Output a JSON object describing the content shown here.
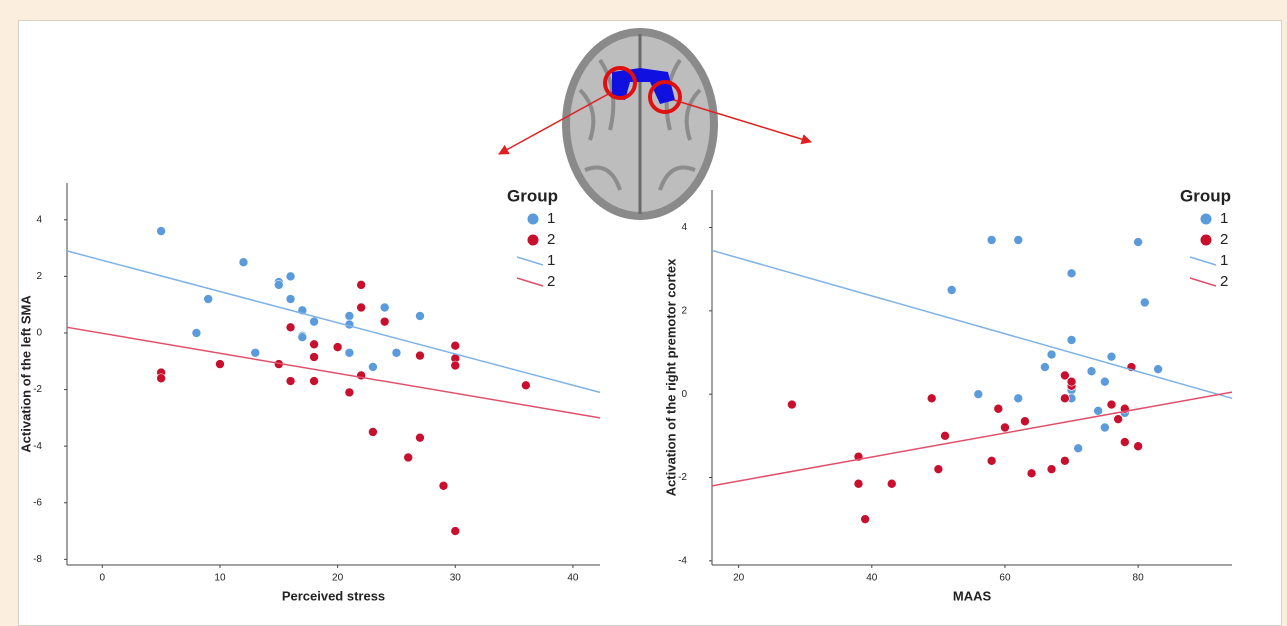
{
  "chart_data": [
    {
      "type": "scatter",
      "x_label": "Perceived stress",
      "y_label": "Activation of the left SMA",
      "legend_title": "Group",
      "legend": "upper right",
      "xlim": [
        -3,
        42.3
      ],
      "ylim": [
        -8.2,
        5.3
      ],
      "xticks": [
        0,
        10,
        20,
        30,
        40
      ],
      "yticks": [
        -8,
        -6,
        -4,
        -2,
        0,
        2,
        4
      ],
      "series": [
        {
          "name": "1",
          "type": "scatter",
          "color": "#5b9bdc",
          "x": [
            5,
            12,
            9,
            8,
            13,
            15,
            15,
            16,
            16,
            17,
            17,
            17,
            18,
            21,
            21,
            21,
            24,
            23,
            25,
            27
          ],
          "values": [
            3.6,
            2.5,
            1.2,
            0,
            -0.7,
            1.8,
            1.7,
            2.0,
            1.2,
            0.8,
            -0.1,
            -0.15,
            0.4,
            0.6,
            0.3,
            -0.7,
            0.9,
            -1.2,
            -0.7,
            0.6
          ]
        },
        {
          "name": "2",
          "type": "scatter",
          "color": "#c8102e",
          "x": [
            5,
            5,
            10,
            15,
            16,
            16,
            18,
            18,
            18,
            20,
            21,
            22,
            22,
            22,
            23,
            24,
            26,
            27,
            27,
            29,
            30,
            30,
            30,
            30,
            36
          ],
          "values": [
            -1.4,
            -1.6,
            -1.1,
            -1.1,
            0.2,
            -1.7,
            -0.4,
            -0.85,
            -1.7,
            -0.5,
            -2.1,
            1.7,
            0.9,
            -1.5,
            -3.5,
            0.4,
            -4.4,
            -0.8,
            -3.7,
            -5.4,
            -0.45,
            -0.9,
            -1.15,
            -7.0,
            -1.85
          ]
        },
        {
          "name": "1",
          "type": "line",
          "color": "#7fb2e6",
          "x": [
            -3,
            42.3
          ],
          "values": [
            2.9,
            -2.1
          ]
        },
        {
          "name": "2",
          "type": "line",
          "color": "#e0506a",
          "x": [
            -3,
            42.3
          ],
          "values": [
            0.2,
            -3.0
          ]
        }
      ]
    },
    {
      "type": "scatter",
      "x_label": "MAAS",
      "y_label": "Activation of the right premotor cortex",
      "legend_title": "Group",
      "legend": "upper right",
      "xlim": [
        16,
        94.1
      ],
      "ylim": [
        -4.1,
        4.9
      ],
      "xticks": [
        20,
        40,
        60,
        80
      ],
      "yticks": [
        -4,
        -2,
        0,
        2,
        4
      ],
      "series": [
        {
          "name": "1",
          "type": "scatter",
          "color": "#5b9bdc",
          "x": [
            58,
            62,
            80,
            52,
            81,
            70,
            70,
            67,
            66,
            76,
            83,
            73,
            75,
            70,
            70,
            56,
            62,
            74,
            78,
            75,
            71
          ],
          "values": [
            3.7,
            3.7,
            3.65,
            2.5,
            2.2,
            2.9,
            1.3,
            0.95,
            0.65,
            0.9,
            0.6,
            0.55,
            0.3,
            0.1,
            -0.1,
            0,
            -0.1,
            -0.4,
            -0.45,
            -0.8,
            -1.3
          ]
        },
        {
          "name": "2",
          "type": "scatter",
          "color": "#c8102e",
          "x": [
            28,
            38,
            38,
            39,
            43,
            49,
            51,
            50,
            58,
            59,
            60,
            63,
            64,
            67,
            69,
            69,
            69,
            70,
            70,
            76,
            77,
            78,
            78,
            80,
            79
          ],
          "values": [
            -0.25,
            -1.5,
            -2.15,
            -3.0,
            -2.15,
            -0.1,
            -1.0,
            -1.8,
            -1.6,
            -0.35,
            -0.8,
            -0.65,
            -1.9,
            -1.8,
            -1.6,
            0.45,
            -0.1,
            0.2,
            0.3,
            -0.25,
            -0.6,
            -0.35,
            -1.15,
            -1.25,
            0.65
          ]
        },
        {
          "name": "1",
          "type": "line",
          "color": "#7fb2e6",
          "x": [
            16,
            94.1
          ],
          "values": [
            3.45,
            -0.1
          ]
        },
        {
          "name": "2",
          "type": "line",
          "color": "#e0506a",
          "x": [
            16,
            94.1
          ],
          "values": [
            -2.2,
            0.05
          ]
        }
      ]
    }
  ]
}
